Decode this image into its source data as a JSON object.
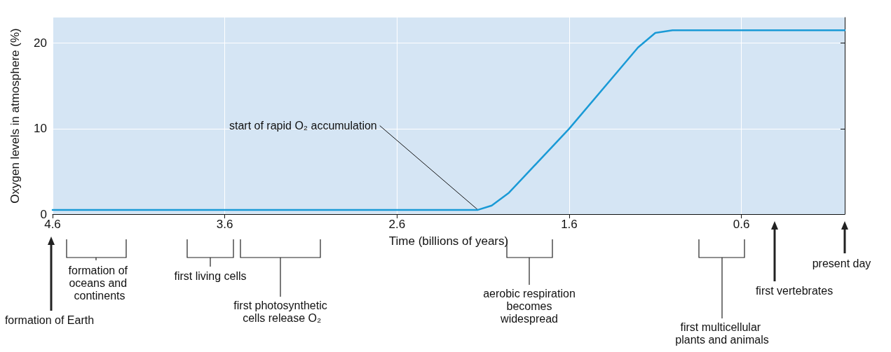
{
  "chart_data": {
    "type": "line",
    "xlabel": "Time (billions of years)",
    "ylabel": "Oxygen levels in atmosphere (%)",
    "series": [
      {
        "color": "#1a9ad6",
        "x": [
          4.6,
          2.25,
          2.13,
          2.05,
          1.95,
          1.6,
          1.2,
          1.1,
          1.0,
          0
        ],
        "values": [
          0.5,
          0.5,
          0.5,
          1,
          2.5,
          10,
          19.5,
          21.2,
          21.5,
          21.5
        ]
      }
    ],
    "xlim": [
      4.6,
      0
    ],
    "xticks": [
      4.6,
      3.6,
      2.6,
      1.6,
      0.6
    ],
    "ylim": [
      0,
      23
    ],
    "yticks": [
      0,
      10,
      20
    ],
    "grid": true,
    "marker": "none",
    "line_style": "solid",
    "annotations": [
      {
        "text": "start of rapid O₂ accumulation",
        "x": 2.13,
        "y": 0.5
      },
      "formation of Earth",
      "formation of oceans and continents",
      "first living cells",
      "first photosynthetic cells release O₂",
      "aerobic respiration becomes widespread",
      "first multicellular plants and animals",
      "first vertebrates",
      "present day"
    ]
  }
}
